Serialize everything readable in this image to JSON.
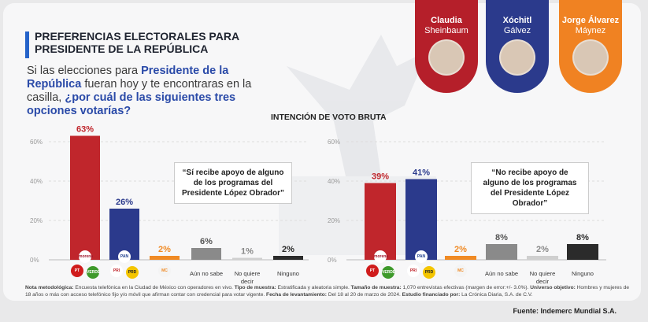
{
  "title": "PREFERENCIAS ELECTORALES PARA PRESIDENTE DE LA REPÚBLICA",
  "question": {
    "part1": "Si las elecciones para ",
    "highlight1": "Presidente de la República",
    "part2": " fueran hoy y te encontraras en la casilla, ",
    "highlight2": "¿por cuál de las siguientes tres opciones votarías?"
  },
  "subtitle": "INTENCIÓN DE VOTO BRUTA",
  "candidates": [
    {
      "first": "Claudia",
      "last": "Sheinbaum",
      "color": "#b51f2a"
    },
    {
      "first": "Xóchitl",
      "last": "Gálvez",
      "color": "#2b3a8c"
    },
    {
      "first": "Jorge Álvarez",
      "last": "Máynez",
      "color": "#f08222"
    }
  ],
  "logos": {
    "pt": "PT",
    "morena": "morena",
    "verde": "VERDE",
    "pan": "PAN",
    "pri": "PRI",
    "prd": "PRD",
    "mc": "MC"
  },
  "chart_data": [
    {
      "type": "bar",
      "title": "“Sí recibe apoyo de alguno de los programas del Presidente López Obrador”",
      "categories": [
        "Claudia Sheinbaum",
        "Xóchitl Gálvez",
        "Jorge Álvarez Máynez",
        "Aún no sabe",
        "No quiere decir",
        "Ninguno"
      ],
      "tick_labels": [
        "",
        "",
        "",
        "Aún no sabe",
        "No quiere decir",
        "Ninguno"
      ],
      "values": [
        63,
        26,
        2,
        6,
        1,
        2
      ],
      "labels": [
        "63%",
        "26%",
        "2%",
        "6%",
        "1%",
        "2%"
      ],
      "colors": [
        "#c0262c",
        "#2b3a8c",
        "#f08a24",
        "#8a8a8a",
        "#cfcfcf",
        "#2b2b2b"
      ],
      "label_colors": [
        "#c0262c",
        "#2b3a8c",
        "#f08a24",
        "#555555",
        "#888888",
        "#2b2b2b"
      ],
      "yticks": [
        "0%",
        "20%",
        "40%",
        "60%"
      ],
      "ylim": [
        0,
        70
      ]
    },
    {
      "type": "bar",
      "title": "“No recibe apoyo de alguno de los programas del Presidente López Obrador”",
      "categories": [
        "Claudia Sheinbaum",
        "Xóchitl Gálvez",
        "Jorge Álvarez Máynez",
        "Aún no sabe",
        "No quiere decir",
        "Ninguno"
      ],
      "tick_labels": [
        "",
        "",
        "",
        "Aún no sabe",
        "No quiere decir",
        "Ninguno"
      ],
      "values": [
        39,
        41,
        2,
        8,
        2,
        8
      ],
      "labels": [
        "39%",
        "41%",
        "2%",
        "8%",
        "2%",
        "8%"
      ],
      "colors": [
        "#c0262c",
        "#2b3a8c",
        "#f08a24",
        "#8a8a8a",
        "#cfcfcf",
        "#2b2b2b"
      ],
      "label_colors": [
        "#c0262c",
        "#2b3a8c",
        "#f08a24",
        "#555555",
        "#888888",
        "#2b2b2b"
      ],
      "yticks": [
        "0%",
        "20%",
        "40%",
        "60%"
      ],
      "ylim": [
        0,
        70
      ]
    }
  ],
  "footnote": {
    "l1": "Nota metodológica:",
    "t1": " Encuesta telefónica en la Ciudad de México con operadores en vivo. ",
    "l2": "Tipo de muestra:",
    "t2": " Estratificada y aleatoria simple. ",
    "l3": "Tamaño de muestra:",
    "t3": " 1,070 entrevistas efectivas (margen de error:+/- 3.0%). ",
    "l4": "Universo objetivo:",
    "t4": " Hombres y mujeres de 18 años o más con acceso telefónico fijo y/o móvil que afirman contar con credencial para votar vigente. ",
    "l5": "Fecha de levantamiento:",
    "t5": " Del 18 al 20 de marzo de 2024. ",
    "l6": "Estudio financiado por:",
    "t6": " La Crónica Diaria, S.A. de C.V."
  },
  "source": "Fuente: Indemerc Mundial S.A."
}
